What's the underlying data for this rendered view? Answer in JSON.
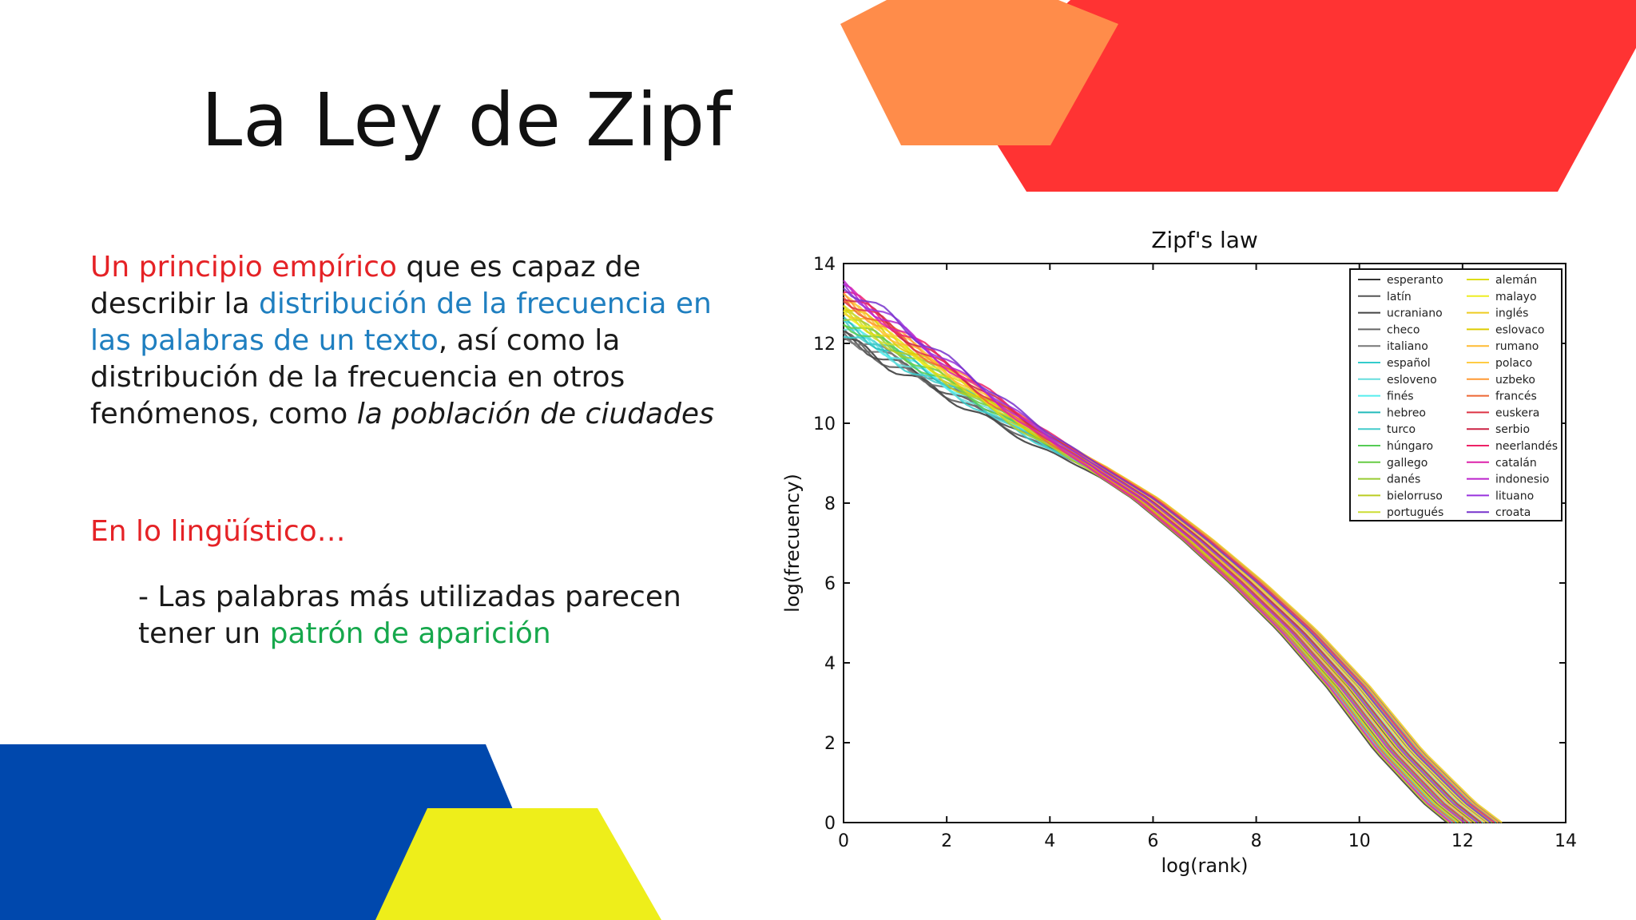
{
  "slide": {
    "title": "La Ley de Zipf",
    "paragraph": {
      "p1_red": "Un principio empírico",
      "p1_text": " que es capaz de describir la ",
      "p1_blue": "distribución de la frecuencia en las palabras de un texto",
      "p1_text2": ", así como la distribución de la frecuencia en otros fenómenos, como ",
      "p1_italic": "la población de ciudades"
    },
    "subheading": "En lo lingüístico…",
    "bullet": {
      "prefix": "- Las palabras más utilizadas parecen tener un ",
      "green": "patrón de aparición"
    }
  },
  "colors": {
    "orange": "#ff8c4a",
    "red": "#ff3333",
    "blue": "#0048ad",
    "yellow": "#eeee1a",
    "text_red": "#e52226",
    "text_blue": "#1f7fc0",
    "text_green": "#16a84c"
  },
  "chart_data": {
    "type": "line",
    "title": "Zipf's law",
    "xlabel": "log(rank)",
    "ylabel": "log(frecuency)",
    "xlim": [
      0,
      14
    ],
    "ylim": [
      0,
      14
    ],
    "xticks": [
      0,
      2,
      4,
      6,
      8,
      10,
      12,
      14
    ],
    "yticks": [
      0,
      2,
      4,
      6,
      8,
      10,
      12,
      14
    ],
    "legend_position": "top-right",
    "series": [
      {
        "name": "esperanto",
        "color": "#333333"
      },
      {
        "name": "latín",
        "color": "#555555"
      },
      {
        "name": "ucraniano",
        "color": "#444444"
      },
      {
        "name": "checo",
        "color": "#666666"
      },
      {
        "name": "italiano",
        "color": "#777777"
      },
      {
        "name": "español",
        "color": "#33cccc"
      },
      {
        "name": "esloveno",
        "color": "#66dddd"
      },
      {
        "name": "finés",
        "color": "#55eeee"
      },
      {
        "name": "hebreo",
        "color": "#22bbbb"
      },
      {
        "name": "turco",
        "color": "#44cccc"
      },
      {
        "name": "húngaro",
        "color": "#55cc55"
      },
      {
        "name": "gallego",
        "color": "#66cc44"
      },
      {
        "name": "danés",
        "color": "#99cc33"
      },
      {
        "name": "bielorruso",
        "color": "#bbcc22"
      },
      {
        "name": "portugués",
        "color": "#ccdd33"
      },
      {
        "name": "alemán",
        "color": "#dddd11"
      },
      {
        "name": "malayo",
        "color": "#eeee22"
      },
      {
        "name": "inglés",
        "color": "#eecc22"
      },
      {
        "name": "eslovaco",
        "color": "#ddcc00"
      },
      {
        "name": "rumano",
        "color": "#ffbb33"
      },
      {
        "name": "polaco",
        "color": "#ffcc44"
      },
      {
        "name": "uzbeko",
        "color": "#ff9933"
      },
      {
        "name": "francés",
        "color": "#ee6633"
      },
      {
        "name": "euskera",
        "color": "#dd3344"
      },
      {
        "name": "serbio",
        "color": "#cc2244"
      },
      {
        "name": "neerlandés",
        "color": "#ee2266"
      },
      {
        "name": "catalán",
        "color": "#dd22aa"
      },
      {
        "name": "indonesio",
        "color": "#bb22cc"
      },
      {
        "name": "lituano",
        "color": "#9933dd"
      },
      {
        "name": "croata",
        "color": "#7733cc"
      }
    ],
    "approx_curve": {
      "x": [
        0,
        1,
        2,
        3,
        4,
        5,
        6,
        7,
        8,
        9,
        10,
        11,
        12,
        12.5
      ],
      "y": [
        12.8,
        12.0,
        11.2,
        10.4,
        9.6,
        8.9,
        8.1,
        7.1,
        6.0,
        4.8,
        3.4,
        1.8,
        0.5,
        0.0
      ]
    }
  }
}
